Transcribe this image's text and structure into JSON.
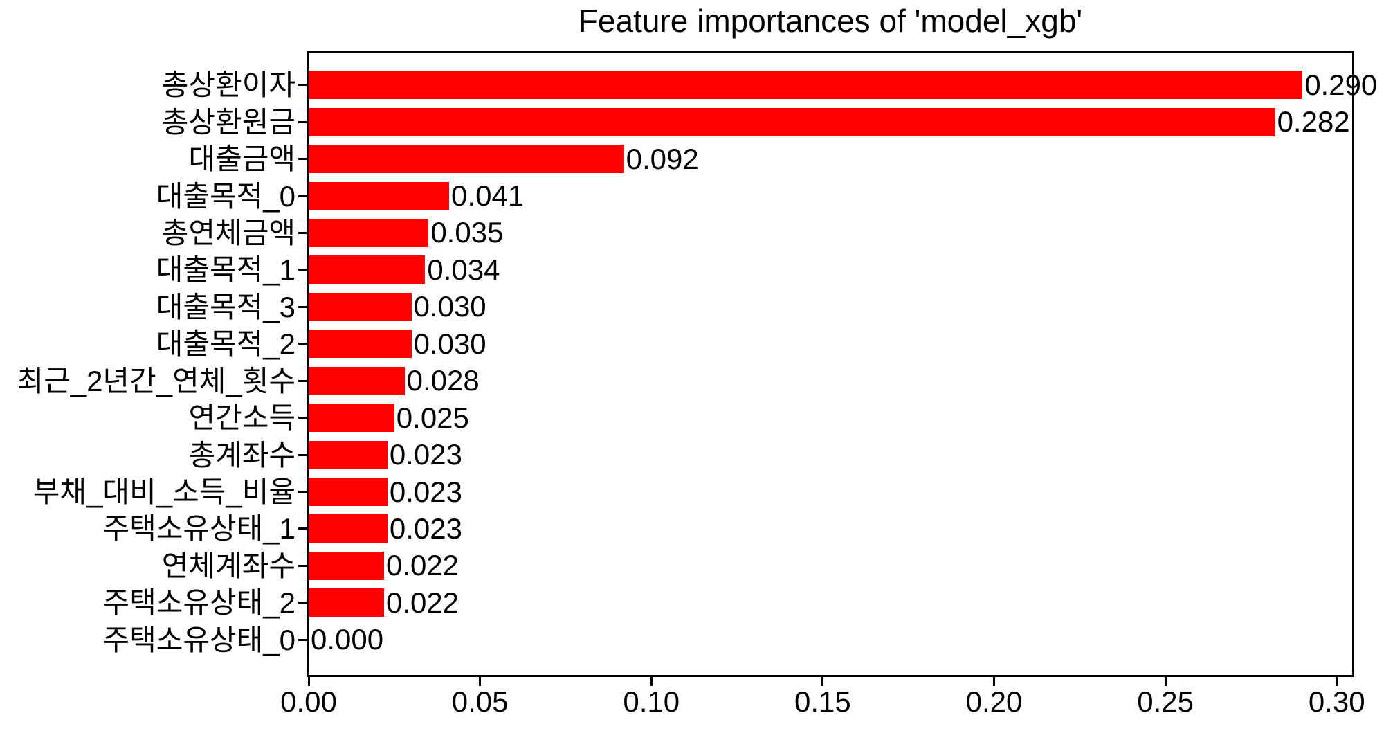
{
  "title": "Feature importances of 'model_xgb'",
  "chart_data": {
    "type": "bar",
    "orientation": "horizontal",
    "title": "Feature importances of 'model_xgb'",
    "categories": [
      "총상환이자",
      "총상환원금",
      "대출금액",
      "대출목적_0",
      "총연체금액",
      "대출목적_1",
      "대출목적_3",
      "대출목적_2",
      "최근_2년간_연체_횟수",
      "연간소득",
      "총계좌수",
      "부채_대비_소득_비율",
      "주택소유상태_1",
      "연체계좌수",
      "주택소유상태_2",
      "주택소유상태_0"
    ],
    "values": [
      0.29,
      0.282,
      0.092,
      0.041,
      0.035,
      0.034,
      0.03,
      0.03,
      0.028,
      0.025,
      0.023,
      0.023,
      0.023,
      0.022,
      0.022,
      0.0
    ],
    "value_labels": [
      "0.290",
      "0.282",
      "0.092",
      "0.041",
      "0.035",
      "0.034",
      "0.030",
      "0.030",
      "0.028",
      "0.025",
      "0.023",
      "0.023",
      "0.023",
      "0.022",
      "0.022",
      "0.000"
    ],
    "x_tick_labels": [
      "0.00",
      "0.05",
      "0.10",
      "0.15",
      "0.20",
      "0.25",
      "0.30"
    ],
    "x_tick_values": [
      0.0,
      0.05,
      0.1,
      0.15,
      0.2,
      0.25,
      0.3
    ],
    "xlim": [
      0,
      0.3045
    ],
    "bar_color": "#ff0000",
    "axis_color": "#000000",
    "text_color": "#000000",
    "grid": false,
    "legend": null
  }
}
